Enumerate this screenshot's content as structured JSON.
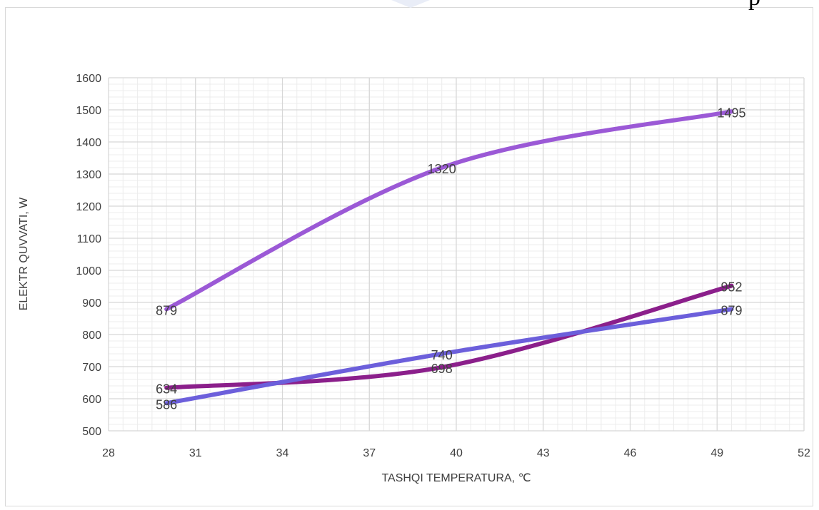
{
  "chart_data": {
    "type": "line",
    "title": "",
    "xlabel": "TASHQI TEMPERATURA, ℃",
    "ylabel": "ELEKTR QUVVATI, W",
    "xlim": [
      28,
      52
    ],
    "ylim": [
      500,
      1600
    ],
    "xticks": [
      28,
      31,
      34,
      37,
      40,
      43,
      46,
      49,
      52
    ],
    "yticks": [
      500,
      600,
      700,
      800,
      900,
      1000,
      1100,
      1200,
      1300,
      1400,
      1500,
      1600
    ],
    "grid": true,
    "legend": "none",
    "series": [
      {
        "color": "#9b59d6",
        "x": [
          30,
          39.5,
          49.5
        ],
        "y": [
          879,
          1320,
          1495
        ],
        "labels": [
          "879",
          "1320",
          "1495"
        ]
      },
      {
        "color": "#8b1f8b",
        "x": [
          30,
          39.5,
          49.5
        ],
        "y": [
          634,
          698,
          952
        ],
        "labels": [
          "634",
          "698",
          "952"
        ]
      },
      {
        "color": "#6c5fdb",
        "x": [
          30,
          39.5,
          49.5
        ],
        "y": [
          586,
          740,
          879
        ],
        "labels": [
          "586",
          "740",
          "879"
        ]
      }
    ]
  }
}
